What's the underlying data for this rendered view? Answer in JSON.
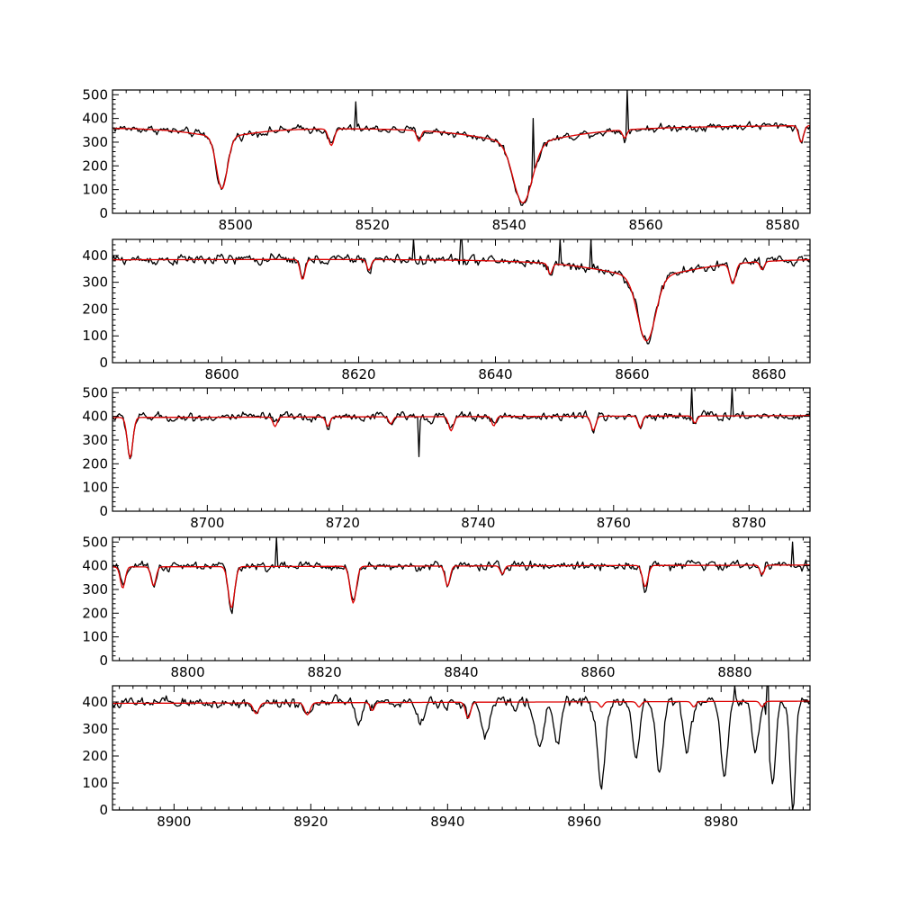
{
  "colors": {
    "observed": "#000000",
    "model": "#dd0000",
    "frame": "#000000"
  },
  "chart_data": [
    {
      "type": "line",
      "xlim": [
        8482,
        8584
      ],
      "ylim": [
        0,
        520
      ],
      "xticks": [
        8500,
        8520,
        8540,
        8560,
        8580
      ],
      "yticks": [
        0,
        100,
        200,
        300,
        400,
        500
      ],
      "continuum": 365,
      "noise": 20,
      "lines": [
        [
          8498.0,
          220,
          0.8
        ],
        [
          8514.0,
          70,
          0.4
        ],
        [
          8526.8,
          45,
          0.3
        ],
        [
          8542.0,
          255,
          1.4
        ],
        [
          8556.9,
          35,
          0.3
        ],
        [
          8582.7,
          70,
          0.35
        ]
      ],
      "wings": [
        [
          8498.0,
          40,
          6
        ],
        [
          8542.0,
          70,
          9
        ]
      ],
      "spikes": [
        [
          8517.5,
          470
        ],
        [
          8543.5,
          400
        ],
        [
          8557.3,
          520
        ]
      ],
      "deficits": [],
      "series": [
        {
          "name": "",
          "values": []
        },
        {
          "name": "",
          "values": []
        }
      ]
    },
    {
      "type": "line",
      "xlim": [
        8584,
        8686
      ],
      "ylim": [
        0,
        460
      ],
      "xticks": [
        8600,
        8620,
        8640,
        8660,
        8680
      ],
      "yticks": [
        0,
        100,
        200,
        300,
        400
      ],
      "continuum": 385,
      "noise": 22,
      "lines": [
        [
          8611.8,
          75,
          0.35
        ],
        [
          8621.5,
          40,
          0.3
        ],
        [
          8648.0,
          40,
          0.3
        ],
        [
          8662.1,
          240,
          1.3
        ],
        [
          8674.7,
          75,
          0.4
        ],
        [
          8679.0,
          30,
          0.3
        ]
      ],
      "wings": [
        [
          8662.1,
          70,
          9
        ]
      ],
      "spikes": [
        [
          8628.0,
          460
        ],
        [
          8635.0,
          460
        ],
        [
          8649.5,
          460
        ],
        [
          8654.0,
          460
        ]
      ],
      "deficits": [],
      "series": [
        {
          "name": "",
          "values": []
        },
        {
          "name": "",
          "values": []
        }
      ]
    },
    {
      "type": "line",
      "xlim": [
        8686,
        8789
      ],
      "ylim": [
        0,
        520
      ],
      "xticks": [
        8700,
        8720,
        8740,
        8760,
        8780
      ],
      "yticks": [
        0,
        100,
        200,
        300,
        400,
        500
      ],
      "continuum": 395,
      "noise": 22,
      "lines": [
        [
          8688.6,
          170,
          0.4
        ],
        [
          8710.0,
          40,
          0.3
        ],
        [
          8717.8,
          40,
          0.3
        ],
        [
          8727.1,
          30,
          0.3
        ],
        [
          8736.0,
          60,
          0.35
        ],
        [
          8742.3,
          40,
          0.3
        ],
        [
          8757.0,
          60,
          0.35
        ],
        [
          8763.9,
          50,
          0.3
        ],
        [
          8772.0,
          30,
          0.3
        ]
      ],
      "wings": [],
      "spikes": [
        [
          8731.3,
          230
        ],
        [
          8771.5,
          520
        ],
        [
          8777.5,
          520
        ]
      ],
      "deficits": [],
      "series": [
        {
          "name": "",
          "values": []
        },
        {
          "name": "",
          "values": []
        }
      ]
    },
    {
      "type": "line",
      "xlim": [
        8789,
        8891
      ],
      "ylim": [
        0,
        520
      ],
      "xticks": [
        8800,
        8820,
        8840,
        8860,
        8880
      ],
      "yticks": [
        0,
        100,
        200,
        300,
        400,
        500
      ],
      "continuum": 395,
      "noise": 22,
      "lines": [
        [
          8790.5,
          90,
          0.35
        ],
        [
          8795.0,
          80,
          0.35
        ],
        [
          8806.4,
          175,
          0.45
        ],
        [
          8824.2,
          155,
          0.45
        ],
        [
          8838.0,
          85,
          0.35
        ],
        [
          8846.0,
          35,
          0.3
        ],
        [
          8866.9,
          90,
          0.4
        ],
        [
          8884.0,
          40,
          0.3
        ]
      ],
      "wings": [],
      "spikes": [
        [
          8813.0,
          520
        ],
        [
          8888.5,
          500
        ]
      ],
      "deficits": [],
      "series": [
        {
          "name": "",
          "values": []
        },
        {
          "name": "",
          "values": []
        }
      ]
    },
    {
      "type": "line",
      "xlim": [
        8891,
        8993
      ],
      "ylim": [
        0,
        460
      ],
      "xticks": [
        8900,
        8920,
        8940,
        8960,
        8980
      ],
      "yticks": [
        0,
        100,
        200,
        300,
        400
      ],
      "continuum": 395,
      "noise": 24,
      "lines": [
        [
          8912.0,
          40,
          0.4
        ],
        [
          8919.5,
          45,
          0.4
        ],
        [
          8929.0,
          30,
          0.3
        ],
        [
          8943.0,
          60,
          0.35
        ],
        [
          8962.5,
          20,
          0.3
        ],
        [
          8968.0,
          20,
          0.3
        ],
        [
          8976.0,
          20,
          0.3
        ],
        [
          8986.0,
          20,
          0.3
        ]
      ],
      "wings": [],
      "spikes": [
        [
          8982.0,
          460
        ],
        [
          8986.8,
          460
        ]
      ],
      "deficits": [
        [
          8927.0,
          90,
          0.4
        ],
        [
          8936.0,
          80,
          0.4
        ],
        [
          8945.5,
          130,
          0.6
        ],
        [
          8953.5,
          180,
          0.6
        ],
        [
          8956.0,
          150,
          0.5
        ],
        [
          8962.5,
          290,
          0.6
        ],
        [
          8967.5,
          200,
          0.5
        ],
        [
          8971.0,
          270,
          0.5
        ],
        [
          8975.0,
          180,
          0.5
        ],
        [
          8980.5,
          280,
          0.5
        ],
        [
          8985.0,
          180,
          0.5
        ],
        [
          8987.5,
          290,
          0.5
        ],
        [
          8990.5,
          400,
          0.4
        ]
      ],
      "series": [
        {
          "name": "",
          "values": []
        },
        {
          "name": "",
          "values": []
        }
      ]
    }
  ]
}
